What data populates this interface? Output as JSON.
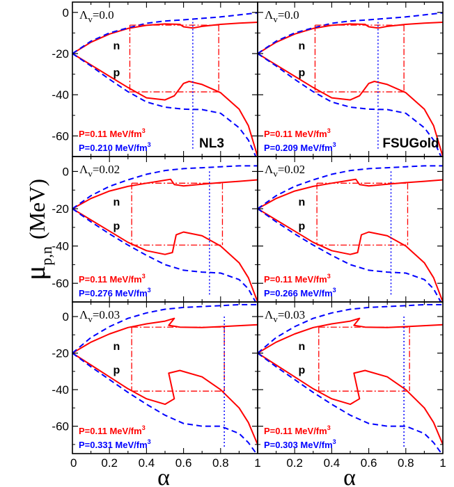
{
  "figure": {
    "ylabel_main": "μ",
    "ylabel_sub": "p,n",
    "ylabel_unit": "(MeV)",
    "xlabel": "α",
    "colors": {
      "red": "#ff0000",
      "blue": "#0000ff",
      "frame": "#000000"
    }
  },
  "chart_data": [
    {
      "type": "line",
      "model": "NL3",
      "lambda_label": "Λ",
      "lambda_sub": "v",
      "lambda_value": "=0.0",
      "labels": {
        "n": "n",
        "p": "p"
      },
      "pressure_red": "P=0.11 MeV/fm",
      "pressure_blue": "P=0.210 MeV/fm",
      "pressure_exp": "3",
      "xlim": [
        0,
        1
      ],
      "ylim": [
        -70,
        5
      ],
      "xticks": [
        0,
        0.2,
        0.4,
        0.6,
        0.8,
        1
      ],
      "yticks": [
        0,
        -20,
        -40,
        -60
      ],
      "series": [
        {
          "color": "red",
          "style": "solid",
          "x": [
            0,
            0.1,
            0.2,
            0.3,
            0.4,
            0.5,
            0.58,
            0.6,
            0.65,
            0.7,
            0.8,
            0.9,
            1.0
          ],
          "y": [
            -20,
            -14.5,
            -10.5,
            -7.8,
            -6.3,
            -5.6,
            -5.8,
            -7,
            -7.6,
            -6.8,
            -5.8,
            -5.2,
            -4.8
          ]
        },
        {
          "color": "red",
          "style": "solid",
          "x": [
            0,
            0.1,
            0.2,
            0.3,
            0.4,
            0.5,
            0.55,
            0.6,
            0.63,
            0.7,
            0.8,
            0.9,
            0.95,
            1.0
          ],
          "y": [
            -20,
            -25.5,
            -31,
            -36.5,
            -41.5,
            -42.5,
            -40.5,
            -34.5,
            -33.5,
            -35,
            -39,
            -47,
            -55,
            -70
          ]
        },
        {
          "color": "blue",
          "style": "dashed",
          "x": [
            0,
            0.1,
            0.2,
            0.3,
            0.4,
            0.5,
            0.6,
            0.7,
            0.8,
            0.9,
            1.0
          ],
          "y": [
            -20,
            -14,
            -10,
            -7.5,
            -5.3,
            -4.2,
            -3.6,
            -2.9,
            -2.2,
            -1.2,
            -0.2
          ]
        },
        {
          "color": "blue",
          "style": "dashed",
          "x": [
            0,
            0.1,
            0.2,
            0.3,
            0.4,
            0.5,
            0.6,
            0.7,
            0.8,
            0.9,
            0.95,
            1.0
          ],
          "y": [
            -20,
            -26,
            -32.5,
            -38.5,
            -43.5,
            -46,
            -47,
            -47.2,
            -49,
            -56,
            -62,
            -72
          ]
        }
      ],
      "construction": {
        "x1": 0.31,
        "x2": 0.79,
        "yn": -6.2,
        "yp": -38.6,
        "blue_x": 0.65
      }
    },
    {
      "type": "line",
      "model": "FSUGold",
      "lambda_label": "Λ",
      "lambda_sub": "v",
      "lambda_value": "=0.0",
      "labels": {
        "n": "n",
        "p": "p"
      },
      "pressure_red": "P=0.11 MeV/fm",
      "pressure_blue": "P=0.209 MeV/fm",
      "pressure_exp": "3",
      "xlim": [
        0,
        1
      ],
      "ylim": [
        -70,
        5
      ],
      "xticks": [
        0,
        0.2,
        0.4,
        0.6,
        0.8,
        1
      ],
      "yticks": [
        0,
        -20,
        -40,
        -60
      ],
      "series": [
        {
          "color": "red",
          "style": "solid",
          "x": [
            0,
            0.1,
            0.2,
            0.3,
            0.4,
            0.5,
            0.58,
            0.6,
            0.65,
            0.7,
            0.8,
            0.9,
            1.0
          ],
          "y": [
            -20,
            -14.5,
            -10.5,
            -7.8,
            -6.3,
            -5.6,
            -5.8,
            -7,
            -7.6,
            -6.8,
            -5.8,
            -5.2,
            -4.8
          ]
        },
        {
          "color": "red",
          "style": "solid",
          "x": [
            0,
            0.1,
            0.2,
            0.3,
            0.4,
            0.5,
            0.55,
            0.6,
            0.63,
            0.7,
            0.8,
            0.9,
            0.95,
            1.0
          ],
          "y": [
            -20,
            -25.5,
            -31,
            -36.5,
            -41.5,
            -42.5,
            -40.5,
            -34.5,
            -33.5,
            -35,
            -39,
            -47,
            -55,
            -70
          ]
        },
        {
          "color": "blue",
          "style": "dashed",
          "x": [
            0,
            0.1,
            0.2,
            0.3,
            0.4,
            0.5,
            0.6,
            0.7,
            0.8,
            0.9,
            1.0
          ],
          "y": [
            -20,
            -14,
            -10,
            -7.5,
            -5.3,
            -4.2,
            -3.6,
            -2.9,
            -2.2,
            -1.2,
            -0.2
          ]
        },
        {
          "color": "blue",
          "style": "dashed",
          "x": [
            0,
            0.1,
            0.2,
            0.3,
            0.4,
            0.5,
            0.6,
            0.7,
            0.8,
            0.9,
            0.95,
            1.0
          ],
          "y": [
            -20,
            -26,
            -32.5,
            -38.5,
            -43.5,
            -46,
            -47,
            -47.2,
            -49,
            -56,
            -62,
            -72
          ]
        }
      ],
      "construction": {
        "x1": 0.31,
        "x2": 0.79,
        "yn": -6.2,
        "yp": -38.6,
        "blue_x": 0.65
      }
    },
    {
      "type": "line",
      "model": "",
      "lambda_label": "Λ",
      "lambda_sub": "v",
      "lambda_value": "=0.02",
      "labels": {
        "n": "n",
        "p": "p"
      },
      "pressure_red": "P=0.11 MeV/fm",
      "pressure_blue": "P=0.276 MeV/fm",
      "pressure_exp": "3",
      "xlim": [
        0,
        1
      ],
      "ylim": [
        -70,
        8
      ],
      "xticks": [
        0,
        0.2,
        0.4,
        0.6,
        0.8,
        1
      ],
      "yticks": [
        0,
        -20,
        -40,
        -60
      ],
      "series": [
        {
          "color": "red",
          "style": "solid",
          "x": [
            0,
            0.1,
            0.2,
            0.3,
            0.4,
            0.5,
            0.53,
            0.55,
            0.6,
            0.7,
            0.8,
            0.9,
            1.0
          ],
          "y": [
            -20,
            -14.5,
            -10.5,
            -8,
            -6.3,
            -4.7,
            -4.2,
            -7,
            -7.8,
            -6.8,
            -6,
            -5.3,
            -4.5
          ]
        },
        {
          "color": "red",
          "style": "solid",
          "x": [
            0,
            0.1,
            0.2,
            0.3,
            0.4,
            0.5,
            0.54,
            0.56,
            0.6,
            0.7,
            0.8,
            0.9,
            0.95,
            1.0
          ],
          "y": [
            -20,
            -26,
            -32,
            -38,
            -42.5,
            -44.5,
            -43.5,
            -34,
            -32.5,
            -34.5,
            -40,
            -49,
            -57,
            -70
          ]
        },
        {
          "color": "blue",
          "style": "dashed",
          "x": [
            0,
            0.1,
            0.2,
            0.3,
            0.4,
            0.5,
            0.6,
            0.7,
            0.8,
            0.9,
            1.0
          ],
          "y": [
            -20,
            -13,
            -8,
            -4.5,
            -1.5,
            0.5,
            1.5,
            2,
            2.5,
            3,
            3
          ]
        },
        {
          "color": "blue",
          "style": "dashed",
          "x": [
            0,
            0.1,
            0.2,
            0.3,
            0.4,
            0.5,
            0.6,
            0.7,
            0.8,
            0.9,
            0.95,
            1.0
          ],
          "y": [
            -20,
            -27,
            -33.5,
            -39.5,
            -45,
            -50,
            -53,
            -54,
            -54.5,
            -58,
            -63,
            -72
          ]
        }
      ],
      "construction": {
        "x1": 0.32,
        "x2": 0.81,
        "yn": -6.3,
        "yp": -39.5,
        "blue_x": 0.74
      }
    },
    {
      "type": "line",
      "model": "",
      "lambda_label": "Λ",
      "lambda_sub": "v",
      "lambda_value": "=0.02",
      "labels": {
        "n": "n",
        "p": "p"
      },
      "pressure_red": "P=0.11 MeV/fm",
      "pressure_blue": "P=0.266 MeV/fm",
      "pressure_exp": "3",
      "xlim": [
        0,
        1
      ],
      "ylim": [
        -70,
        8
      ],
      "xticks": [
        0,
        0.2,
        0.4,
        0.6,
        0.8,
        1
      ],
      "yticks": [
        0,
        -20,
        -40,
        -60
      ],
      "series": [
        {
          "color": "red",
          "style": "solid",
          "x": [
            0,
            0.1,
            0.2,
            0.3,
            0.4,
            0.5,
            0.53,
            0.55,
            0.6,
            0.7,
            0.8,
            0.9,
            1.0
          ],
          "y": [
            -20,
            -14.5,
            -10.5,
            -8,
            -6.3,
            -4.7,
            -4.2,
            -7,
            -7.8,
            -6.8,
            -6,
            -5.3,
            -4.5
          ]
        },
        {
          "color": "red",
          "style": "solid",
          "x": [
            0,
            0.1,
            0.2,
            0.3,
            0.4,
            0.5,
            0.54,
            0.56,
            0.6,
            0.7,
            0.8,
            0.9,
            0.95,
            1.0
          ],
          "y": [
            -20,
            -26,
            -32,
            -38,
            -42.5,
            -44.5,
            -43.5,
            -34,
            -32.5,
            -34.5,
            -40,
            -49,
            -57,
            -70
          ]
        },
        {
          "color": "blue",
          "style": "dashed",
          "x": [
            0,
            0.1,
            0.2,
            0.3,
            0.4,
            0.5,
            0.6,
            0.7,
            0.8,
            0.9,
            1.0
          ],
          "y": [
            -20,
            -13,
            -8,
            -4.5,
            -1.5,
            0.5,
            1.5,
            2,
            2.5,
            3,
            3
          ]
        },
        {
          "color": "blue",
          "style": "dashed",
          "x": [
            0,
            0.1,
            0.2,
            0.3,
            0.4,
            0.5,
            0.6,
            0.7,
            0.8,
            0.9,
            0.95,
            1.0
          ],
          "y": [
            -20,
            -27,
            -33.5,
            -39.5,
            -45,
            -50,
            -53,
            -54,
            -54.5,
            -58,
            -63,
            -72
          ]
        }
      ],
      "construction": {
        "x1": 0.32,
        "x2": 0.81,
        "yn": -6.3,
        "yp": -39.5,
        "blue_x": 0.72
      }
    },
    {
      "type": "line",
      "model": "",
      "lambda_label": "Λ",
      "lambda_sub": "v",
      "lambda_value": "=0.03",
      "labels": {
        "n": "n",
        "p": "p"
      },
      "pressure_red": "P=0.11 MeV/fm",
      "pressure_blue": "P=0.331 MeV/fm",
      "pressure_exp": "3",
      "xlim": [
        0,
        1
      ],
      "ylim": [
        -75,
        8
      ],
      "xticks": [
        0,
        0.2,
        0.4,
        0.6,
        0.8,
        1
      ],
      "yticks": [
        0,
        -20,
        -40,
        -60
      ],
      "series": [
        {
          "color": "red",
          "style": "solid",
          "x": [
            0,
            0.1,
            0.2,
            0.3,
            0.4,
            0.5,
            0.55,
            0.52,
            0.58,
            0.7,
            0.8,
            0.9,
            1.0
          ],
          "y": [
            -20,
            -14,
            -9.5,
            -6,
            -4,
            -2.5,
            -1,
            -4.8,
            -5.8,
            -6,
            -5.5,
            -5,
            -4.5
          ]
        },
        {
          "color": "red",
          "style": "solid",
          "x": [
            0,
            0.1,
            0.2,
            0.3,
            0.4,
            0.5,
            0.55,
            0.52,
            0.58,
            0.7,
            0.8,
            0.9,
            0.95,
            1.0
          ],
          "y": [
            -20,
            -26.5,
            -33,
            -39.5,
            -45,
            -48,
            -45,
            -31,
            -29.5,
            -33,
            -40,
            -50,
            -58,
            -70
          ]
        },
        {
          "color": "blue",
          "style": "dashed",
          "x": [
            0,
            0.1,
            0.2,
            0.3,
            0.4,
            0.5,
            0.6,
            0.7,
            0.8,
            0.9,
            1.0
          ],
          "y": [
            -20,
            -11.5,
            -5.5,
            -1,
            2,
            4,
            5,
            5.5,
            6,
            6.5,
            6.5
          ]
        },
        {
          "color": "blue",
          "style": "dashed",
          "x": [
            0,
            0.1,
            0.2,
            0.3,
            0.4,
            0.5,
            0.6,
            0.7,
            0.8,
            0.9,
            0.95,
            1.0
          ],
          "y": [
            -20,
            -27.5,
            -34.5,
            -41.5,
            -48,
            -54,
            -58.5,
            -60,
            -60,
            -64,
            -69,
            -76
          ]
        }
      ],
      "construction": {
        "x1": 0.32,
        "x2": 0.82,
        "yn": -5.8,
        "yp": -40.8,
        "blue_x": 0.82
      }
    },
    {
      "type": "line",
      "model": "",
      "lambda_label": "Λ",
      "lambda_sub": "v",
      "lambda_value": "=0.03",
      "labels": {
        "n": "n",
        "p": "p"
      },
      "pressure_red": "P=0.11 MeV/fm",
      "pressure_blue": "P=0.303 MeV/fm",
      "pressure_exp": "3",
      "xlim": [
        0,
        1
      ],
      "ylim": [
        -75,
        8
      ],
      "xticks": [
        0,
        0.2,
        0.4,
        0.6,
        0.8,
        1
      ],
      "yticks": [
        0,
        -20,
        -40,
        -60
      ],
      "series": [
        {
          "color": "red",
          "style": "solid",
          "x": [
            0,
            0.1,
            0.2,
            0.3,
            0.4,
            0.5,
            0.55,
            0.52,
            0.58,
            0.7,
            0.8,
            0.9,
            1.0
          ],
          "y": [
            -20,
            -14,
            -9.5,
            -6,
            -4,
            -2.5,
            -1,
            -4.8,
            -5.8,
            -6,
            -5.5,
            -5,
            -4.5
          ]
        },
        {
          "color": "red",
          "style": "solid",
          "x": [
            0,
            0.1,
            0.2,
            0.3,
            0.4,
            0.5,
            0.55,
            0.52,
            0.58,
            0.7,
            0.8,
            0.9,
            0.95,
            1.0
          ],
          "y": [
            -20,
            -26.5,
            -33,
            -39.5,
            -45,
            -48,
            -45,
            -31,
            -29.5,
            -33,
            -40,
            -50,
            -58,
            -70
          ]
        },
        {
          "color": "blue",
          "style": "dashed",
          "x": [
            0,
            0.1,
            0.2,
            0.3,
            0.4,
            0.5,
            0.6,
            0.7,
            0.8,
            0.9,
            1.0
          ],
          "y": [
            -20,
            -11.5,
            -5.5,
            -1,
            2,
            4,
            5,
            5.5,
            6,
            6.5,
            6.5
          ]
        },
        {
          "color": "blue",
          "style": "dashed",
          "x": [
            0,
            0.1,
            0.2,
            0.3,
            0.4,
            0.5,
            0.6,
            0.7,
            0.8,
            0.9,
            0.95,
            1.0
          ],
          "y": [
            -20,
            -27.5,
            -34.5,
            -41.5,
            -48,
            -54,
            -58.5,
            -60,
            -60,
            -64,
            -69,
            -76
          ]
        }
      ],
      "construction": {
        "x1": 0.33,
        "x2": 0.82,
        "yn": -5.8,
        "yp": -40.8,
        "blue_x": 0.79
      }
    }
  ]
}
